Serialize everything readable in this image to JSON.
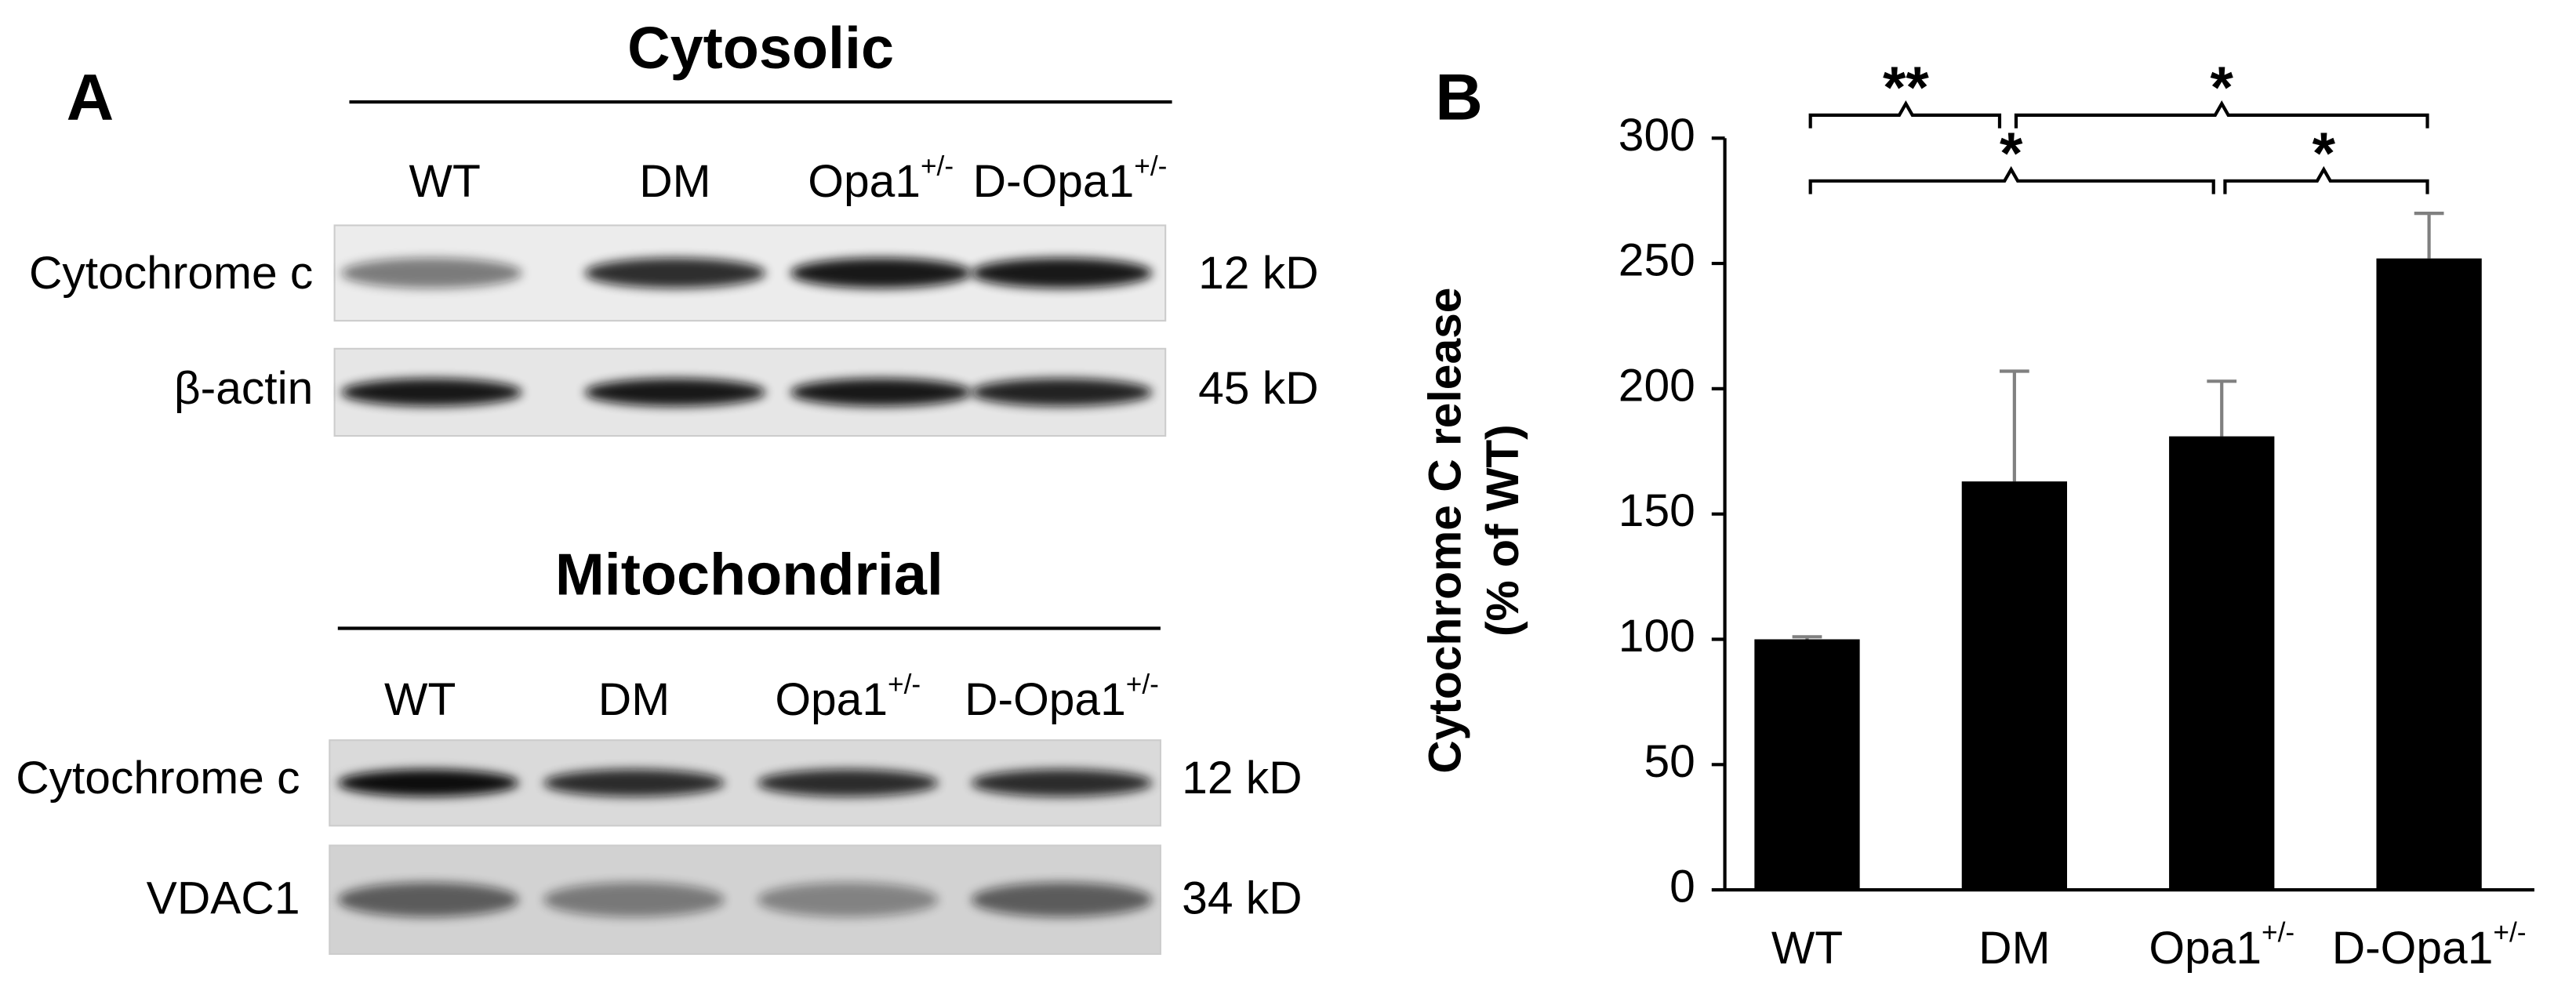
{
  "panel_a": {
    "label": "A",
    "sections": [
      {
        "title": "Cytosolic",
        "lanes": [
          "WT",
          "DM",
          "Opa1",
          "D-Opa1"
        ],
        "lane_superscripts": [
          null,
          null,
          "+/-",
          "+/-"
        ],
        "rows": [
          {
            "protein": "Cytochrome c",
            "size": "12 kD"
          },
          {
            "protein": "β-actin",
            "size": "45 kD"
          }
        ]
      },
      {
        "title": "Mitochondrial",
        "lanes": [
          "WT",
          "DM",
          "Opa1",
          "D-Opa1"
        ],
        "lane_superscripts": [
          null,
          null,
          "+/-",
          "+/-"
        ],
        "rows": [
          {
            "protein": "Cytochrome c",
            "size": "12 kD"
          },
          {
            "protein": "VDAC1",
            "size": "34 kD"
          }
        ]
      }
    ]
  },
  "chart_data": {
    "type": "bar",
    "panel_label": "B",
    "y_label": [
      "Cytochrome C release",
      "(% of WT)"
    ],
    "categories": [
      "WT",
      "DM",
      "Opa1",
      "D-Opa1"
    ],
    "category_superscripts": [
      null,
      null,
      "+/-",
      "+/-"
    ],
    "values": [
      100,
      163,
      181,
      252
    ],
    "errors": [
      1,
      44,
      22,
      18
    ],
    "color": "#000000",
    "error_color": "#808080",
    "ylim": [
      0,
      300
    ],
    "yticks": [
      0,
      50,
      100,
      150,
      200,
      250,
      300
    ],
    "significance": [
      "**",
      "*",
      "*",
      "*"
    ]
  }
}
